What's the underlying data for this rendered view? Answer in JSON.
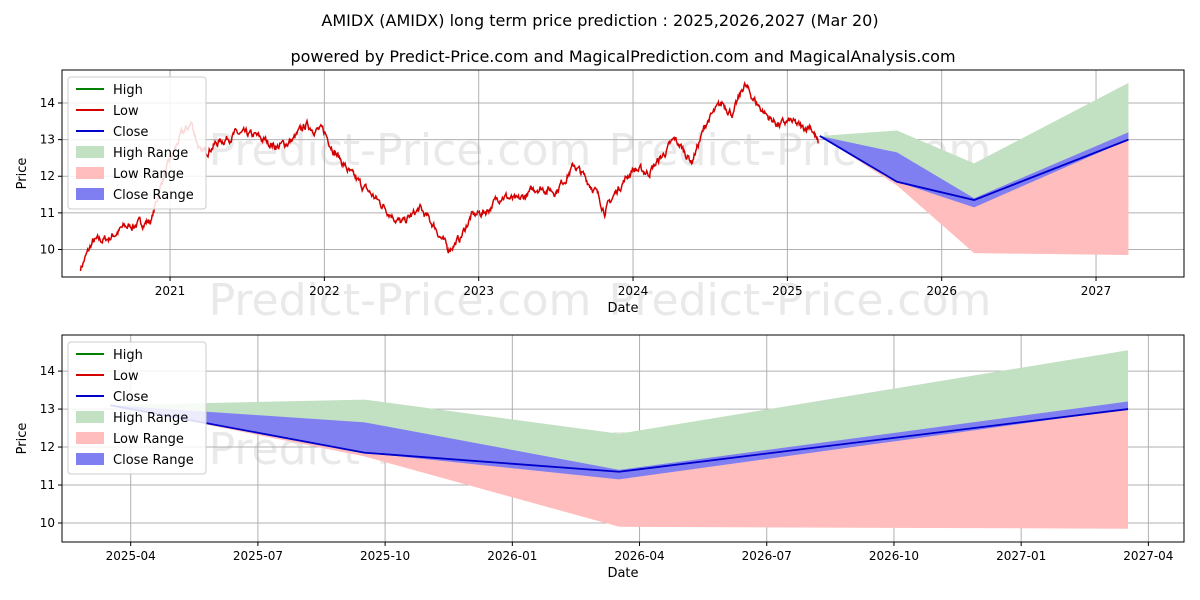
{
  "title": "AMIDX (AMIDX) long term price prediction : 2025,2026,2027 (Mar 20)",
  "subtitle": "powered by Predict-Price.com and MagicalPrediction.com and MagicalAnalysis.com",
  "watermark": "Predict-Price.com",
  "colors": {
    "high": "#008000",
    "low": "#d40000",
    "close": "#0000cc",
    "high_range": "#c2e0c2",
    "low_range": "#ffbdbd",
    "close_range": "#7f7ff2",
    "grid": "#b0b0b0"
  },
  "legend": [
    {
      "label": "High",
      "kind": "line",
      "color": "#008000"
    },
    {
      "label": "Low",
      "kind": "line",
      "color": "#d40000"
    },
    {
      "label": "Close",
      "kind": "line",
      "color": "#0000cc"
    },
    {
      "label": "High Range",
      "kind": "patch",
      "color": "#c2e0c2"
    },
    {
      "label": "Low Range",
      "kind": "patch",
      "color": "#ffbdbd"
    },
    {
      "label": "Close Range",
      "kind": "patch",
      "color": "#7f7ff2"
    }
  ],
  "chart_data": [
    {
      "type": "line",
      "xlabel": "Date",
      "ylabel": "Price",
      "xlim": [
        2020.3,
        2027.57
      ],
      "ylim": [
        9.25,
        14.9
      ],
      "xticks": [
        2021,
        2022,
        2023,
        2024,
        2025,
        2026,
        2027
      ],
      "xtick_labels": [
        "2021",
        "2022",
        "2023",
        "2024",
        "2025",
        "2026",
        "2027"
      ],
      "yticks": [
        10,
        11,
        12,
        13,
        14
      ],
      "grid": true,
      "legend_position": "top-left",
      "history_low_keypoints": [
        [
          2020.42,
          9.5
        ],
        [
          2020.5,
          10.2
        ],
        [
          2020.6,
          10.3
        ],
        [
          2020.7,
          10.6
        ],
        [
          2020.8,
          10.7
        ],
        [
          2020.88,
          10.8
        ],
        [
          2020.95,
          11.9
        ],
        [
          2021.0,
          12.4
        ],
        [
          2021.07,
          13.1
        ],
        [
          2021.14,
          13.45
        ],
        [
          2021.2,
          12.6
        ],
        [
          2021.3,
          12.9
        ],
        [
          2021.42,
          13.15
        ],
        [
          2021.55,
          13.1
        ],
        [
          2021.7,
          12.8
        ],
        [
          2021.8,
          13.0
        ],
        [
          2021.88,
          13.4
        ],
        [
          2022.0,
          13.2
        ],
        [
          2022.08,
          12.6
        ],
        [
          2022.18,
          12.0
        ],
        [
          2022.28,
          11.6
        ],
        [
          2022.38,
          11.2
        ],
        [
          2022.5,
          10.7
        ],
        [
          2022.62,
          11.1
        ],
        [
          2022.72,
          10.6
        ],
        [
          2022.8,
          10.0
        ],
        [
          2022.88,
          10.3
        ],
        [
          2022.95,
          10.9
        ],
        [
          2023.05,
          11.05
        ],
        [
          2023.15,
          11.5
        ],
        [
          2023.25,
          11.3
        ],
        [
          2023.38,
          11.7
        ],
        [
          2023.5,
          11.6
        ],
        [
          2023.62,
          12.3
        ],
        [
          2023.75,
          11.65
        ],
        [
          2023.82,
          11.05
        ],
        [
          2023.9,
          11.65
        ],
        [
          2024.0,
          12.2
        ],
        [
          2024.1,
          12.1
        ],
        [
          2024.2,
          12.6
        ],
        [
          2024.27,
          13.0
        ],
        [
          2024.33,
          12.7
        ],
        [
          2024.38,
          12.4
        ],
        [
          2024.48,
          13.5
        ],
        [
          2024.58,
          14.0
        ],
        [
          2024.65,
          13.7
        ],
        [
          2024.72,
          14.5
        ],
        [
          2024.8,
          14.0
        ],
        [
          2024.88,
          13.6
        ],
        [
          2024.95,
          13.4
        ],
        [
          2025.02,
          13.5
        ],
        [
          2025.1,
          13.3
        ],
        [
          2025.15,
          13.4
        ],
        [
          2025.2,
          12.9
        ]
      ],
      "forecast_x": [
        2025.21,
        2025.71,
        2026.21,
        2027.21
      ],
      "forecast_close": [
        13.1,
        11.85,
        11.35,
        13.0
      ],
      "high_range": {
        "upper": [
          13.1,
          13.25,
          12.35,
          14.55
        ],
        "lower": [
          13.1,
          11.85,
          11.35,
          13.0
        ]
      },
      "low_range": {
        "upper": [
          13.1,
          11.85,
          11.35,
          13.0
        ],
        "lower": [
          13.1,
          11.75,
          9.9,
          9.85
        ]
      },
      "close_range": {
        "upper": [
          13.1,
          12.65,
          11.4,
          13.2
        ],
        "lower": [
          13.1,
          11.85,
          11.15,
          13.0
        ]
      }
    },
    {
      "type": "line",
      "xlabel": "Date",
      "ylabel": "Price",
      "xlim": [
        2025.115,
        2027.32
      ],
      "ylim": [
        9.5,
        14.95
      ],
      "xticks": [
        2025.25,
        2025.5,
        2025.75,
        2026.0,
        2026.25,
        2026.5,
        2026.75,
        2027.0,
        2027.25
      ],
      "xtick_labels": [
        "2025-04",
        "2025-07",
        "2025-10",
        "2026-01",
        "2026-04",
        "2026-07",
        "2026-10",
        "2027-01",
        "2027-04"
      ],
      "yticks": [
        10,
        11,
        12,
        13,
        14
      ],
      "grid": true,
      "legend_position": "top-left",
      "forecast_x": [
        2025.21,
        2025.71,
        2026.21,
        2027.21
      ],
      "forecast_close": [
        13.1,
        11.85,
        11.35,
        13.0
      ],
      "high_range": {
        "upper": [
          13.1,
          13.25,
          12.35,
          14.55
        ],
        "lower": [
          13.1,
          11.85,
          11.35,
          13.0
        ]
      },
      "low_range": {
        "upper": [
          13.1,
          11.85,
          11.35,
          13.0
        ],
        "lower": [
          13.1,
          11.75,
          9.9,
          9.85
        ]
      },
      "close_range": {
        "upper": [
          13.1,
          12.65,
          11.4,
          13.2
        ],
        "lower": [
          13.1,
          11.85,
          11.15,
          13.0
        ]
      }
    }
  ]
}
